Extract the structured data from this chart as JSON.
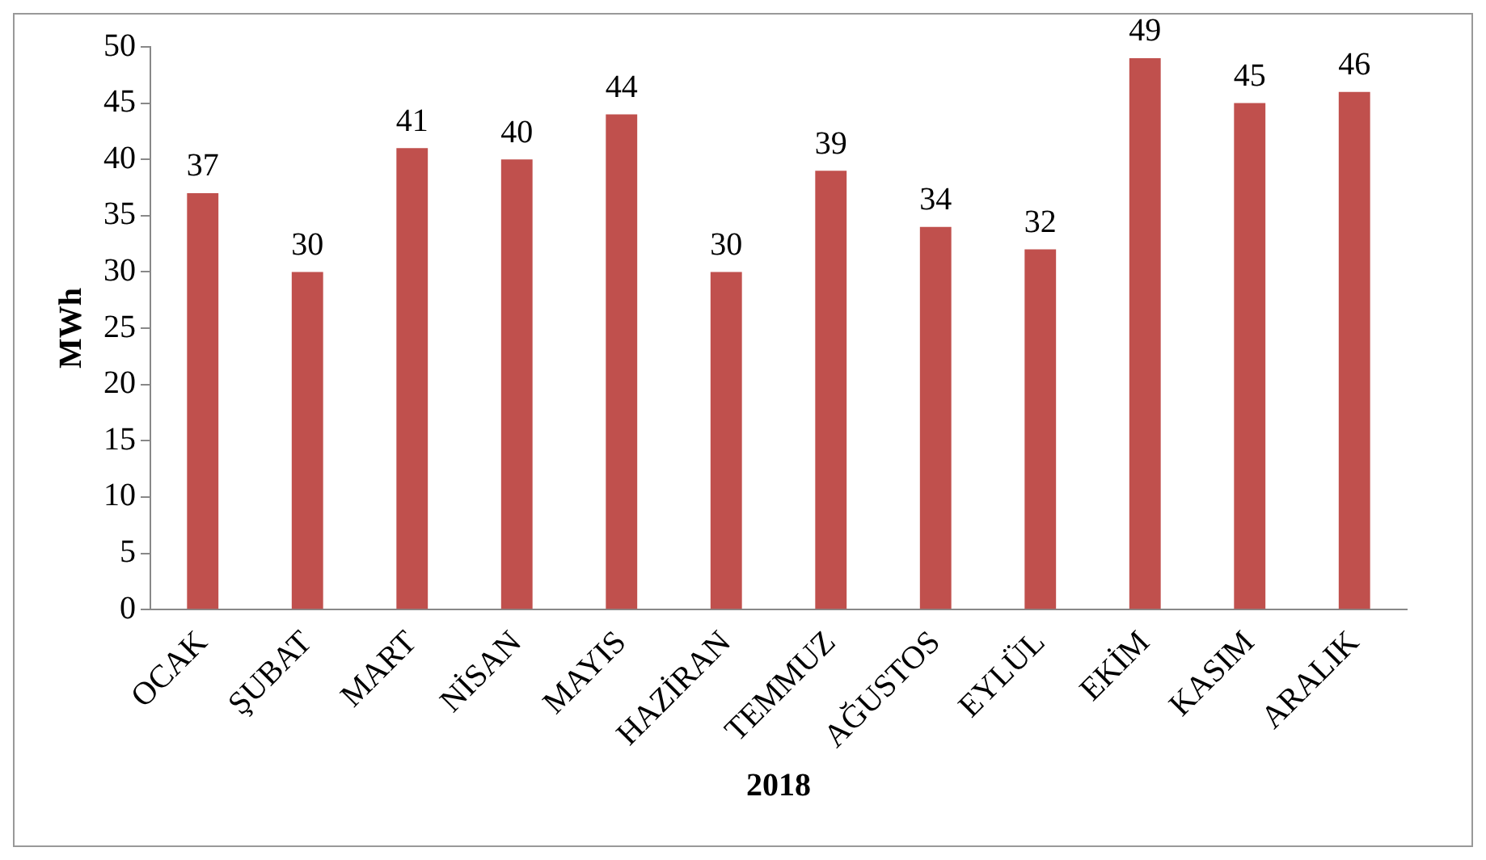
{
  "chart_data": {
    "type": "bar",
    "xlabel": "2018",
    "ylabel": "MWh",
    "categories": [
      "OCAK",
      "ŞUBAT",
      "MART",
      "NİSAN",
      "MAYIS",
      "HAZİRAN",
      "TEMMUZ",
      "AĞUSTOS",
      "EYLÜL",
      "EKİM",
      "KASIM",
      "ARALIK"
    ],
    "values": [
      37,
      30,
      41,
      40,
      44,
      30,
      39,
      34,
      32,
      49,
      45,
      46
    ],
    "color": "#c0504d",
    "ylim": [
      0,
      50
    ],
    "yticks": [
      0,
      5,
      10,
      15,
      20,
      25,
      30,
      35,
      40,
      45,
      50
    ],
    "data_labels": true
  }
}
